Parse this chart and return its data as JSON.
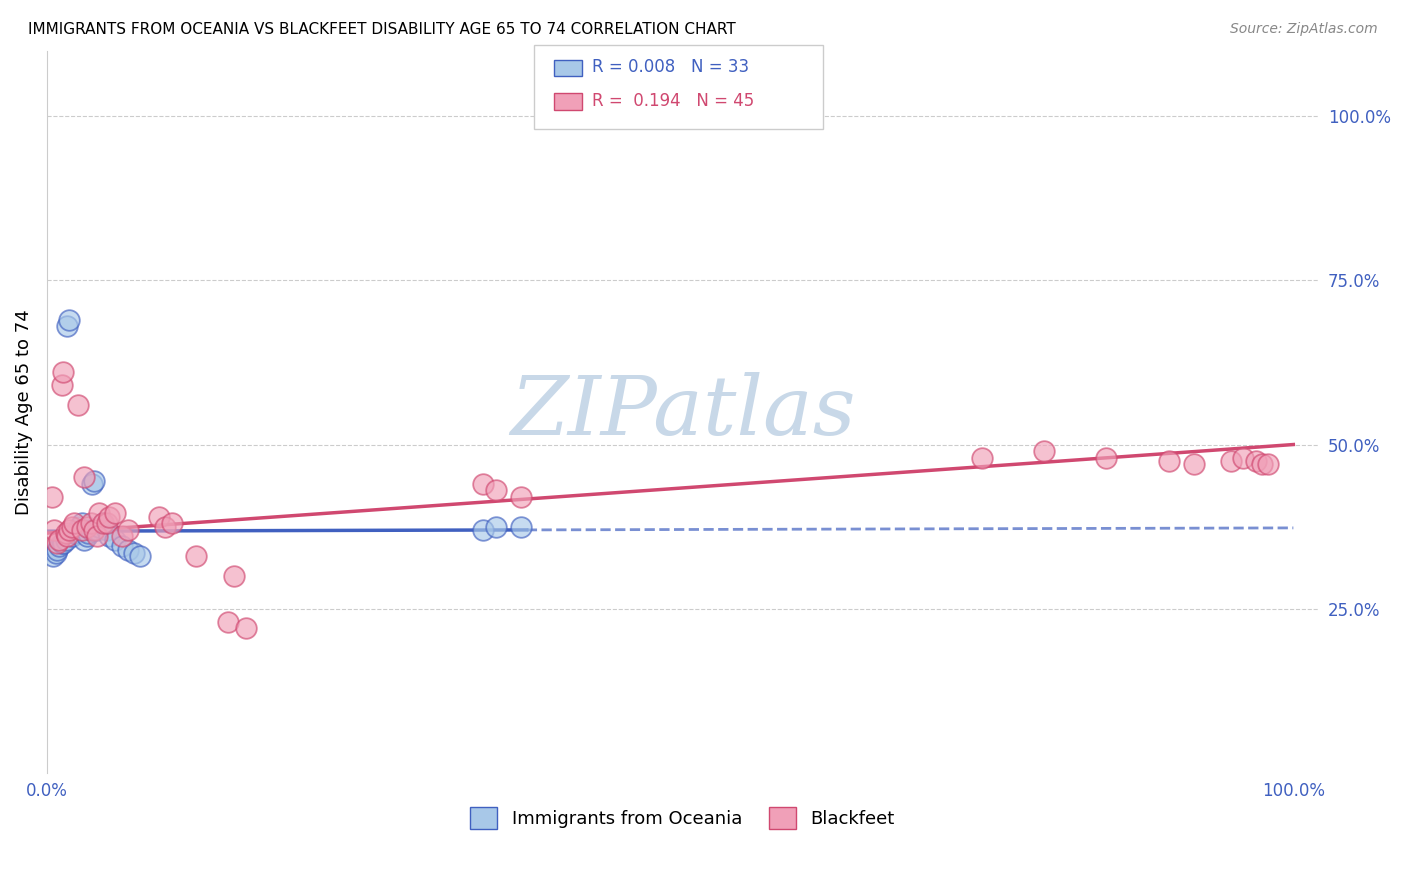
{
  "title": "IMMIGRANTS FROM OCEANIA VS BLACKFEET DISABILITY AGE 65 TO 74 CORRELATION CHART",
  "source": "Source: ZipAtlas.com",
  "ylabel": "Disability Age 65 to 74",
  "ytick_labels": [
    "25.0%",
    "50.0%",
    "75.0%",
    "100.0%"
  ],
  "ytick_values": [
    0.25,
    0.5,
    0.75,
    1.0
  ],
  "legend_label1": "Immigrants from Oceania",
  "legend_label2": "Blackfeet",
  "R1": 0.008,
  "N1": 33,
  "R2": 0.194,
  "N2": 45,
  "color_blue": "#A8C8E8",
  "color_pink": "#F0A0B8",
  "line_color_blue": "#4060C0",
  "line_color_pink": "#D04870",
  "watermark_color": "#C8D8E8",
  "blue_scatter_x": [
    0.005,
    0.007,
    0.008,
    0.01,
    0.012,
    0.013,
    0.015,
    0.016,
    0.018,
    0.02,
    0.022,
    0.025,
    0.026,
    0.028,
    0.03,
    0.032,
    0.033,
    0.035,
    0.036,
    0.038,
    0.04,
    0.042,
    0.045,
    0.048,
    0.05,
    0.055,
    0.06,
    0.065,
    0.07,
    0.075,
    0.35,
    0.36,
    0.38
  ],
  "blue_scatter_y": [
    0.33,
    0.335,
    0.34,
    0.345,
    0.35,
    0.35,
    0.355,
    0.68,
    0.69,
    0.36,
    0.365,
    0.37,
    0.375,
    0.38,
    0.355,
    0.36,
    0.365,
    0.37,
    0.44,
    0.445,
    0.37,
    0.375,
    0.38,
    0.37,
    0.36,
    0.355,
    0.345,
    0.34,
    0.335,
    0.33,
    0.37,
    0.375,
    0.375
  ],
  "pink_scatter_x": [
    0.004,
    0.006,
    0.008,
    0.01,
    0.012,
    0.013,
    0.015,
    0.016,
    0.018,
    0.02,
    0.022,
    0.025,
    0.028,
    0.03,
    0.032,
    0.035,
    0.038,
    0.04,
    0.042,
    0.045,
    0.048,
    0.05,
    0.055,
    0.06,
    0.065,
    0.09,
    0.095,
    0.1,
    0.12,
    0.15,
    0.35,
    0.36,
    0.38,
    0.75,
    0.8,
    0.85,
    0.9,
    0.92,
    0.95,
    0.96,
    0.97,
    0.975,
    0.98,
    0.145,
    0.16
  ],
  "pink_scatter_y": [
    0.42,
    0.37,
    0.35,
    0.355,
    0.59,
    0.61,
    0.365,
    0.36,
    0.37,
    0.375,
    0.38,
    0.56,
    0.37,
    0.45,
    0.375,
    0.38,
    0.37,
    0.36,
    0.395,
    0.38,
    0.38,
    0.39,
    0.395,
    0.36,
    0.37,
    0.39,
    0.375,
    0.38,
    0.33,
    0.3,
    0.44,
    0.43,
    0.42,
    0.48,
    0.49,
    0.48,
    0.475,
    0.47,
    0.475,
    0.48,
    0.475,
    0.47,
    0.47,
    0.23,
    0.22
  ]
}
